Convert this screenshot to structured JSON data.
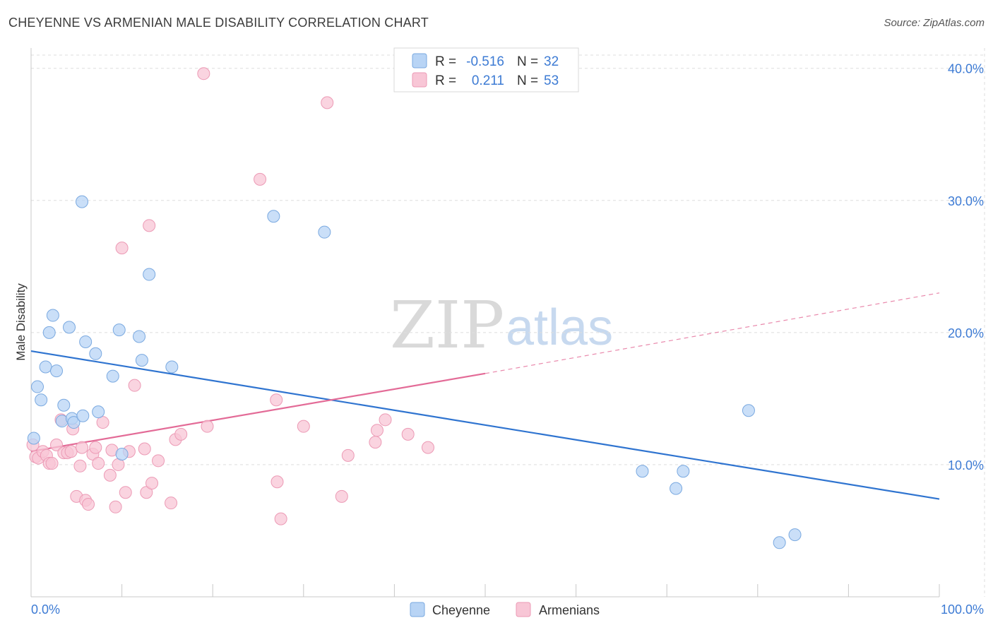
{
  "title": "CHEYENNE VS ARMENIAN MALE DISABILITY CORRELATION CHART",
  "source": "Source: ZipAtlas.com",
  "watermark": {
    "part1": "ZIP",
    "part2": "atlas"
  },
  "colors": {
    "cheyenne_fill": "#b8d4f5",
    "cheyenne_stroke": "#7aa9e0",
    "cheyenne_line": "#2f74d0",
    "armenian_fill": "#f8c6d6",
    "armenian_stroke": "#ec9ab5",
    "armenian_line": "#e36b97",
    "axis_label": "#3d7bd4"
  },
  "legend": {
    "rows": [
      {
        "r_label": "R =",
        "r_value": "-0.516",
        "n_label": "N =",
        "n_value": "32"
      },
      {
        "r_label": "R =",
        "r_value": "0.211",
        "n_label": "N =",
        "n_value": "53"
      }
    ]
  },
  "bottom_legend": {
    "items": [
      "Cheyenne",
      "Armenians"
    ]
  },
  "chart_data": {
    "type": "scatter",
    "title": "CHEYENNE VS ARMENIAN MALE DISABILITY CORRELATION CHART",
    "xlabel": "",
    "ylabel": "Male Disability",
    "xlim": [
      0,
      100
    ],
    "ylim": [
      0,
      41
    ],
    "x_tick_labels": [
      "0.0%",
      "100.0%"
    ],
    "y_ticks": [
      10,
      20,
      30,
      40
    ],
    "y_tick_labels": [
      "10.0%",
      "20.0%",
      "30.0%",
      "40.0%"
    ],
    "grid": true,
    "series": [
      {
        "name": "Cheyenne",
        "r": -0.516,
        "n": 32,
        "trend": {
          "x0": 0,
          "y0": 18.6,
          "x1": 100,
          "y1": 7.4
        },
        "points": [
          [
            0.3,
            12.0
          ],
          [
            0.7,
            15.9
          ],
          [
            1.1,
            14.9
          ],
          [
            1.6,
            17.4
          ],
          [
            2.0,
            20.0
          ],
          [
            2.4,
            21.3
          ],
          [
            2.8,
            17.1
          ],
          [
            3.4,
            13.3
          ],
          [
            3.6,
            14.5
          ],
          [
            4.2,
            20.4
          ],
          [
            4.5,
            13.5
          ],
          [
            4.7,
            13.2
          ],
          [
            5.7,
            13.7
          ],
          [
            5.6,
            29.9
          ],
          [
            6.0,
            19.3
          ],
          [
            7.1,
            18.4
          ],
          [
            7.4,
            14.0
          ],
          [
            9.0,
            16.7
          ],
          [
            9.7,
            20.2
          ],
          [
            10.0,
            10.8
          ],
          [
            11.9,
            19.7
          ],
          [
            12.2,
            17.9
          ],
          [
            13.0,
            24.4
          ],
          [
            15.5,
            17.4
          ],
          [
            26.7,
            28.8
          ],
          [
            32.3,
            27.6
          ],
          [
            67.3,
            9.5
          ],
          [
            71.0,
            8.2
          ],
          [
            71.8,
            9.5
          ],
          [
            79.0,
            14.1
          ],
          [
            82.4,
            4.1
          ],
          [
            84.1,
            4.7
          ]
        ]
      },
      {
        "name": "Armenians",
        "r": 0.211,
        "n": 53,
        "trend_solid": {
          "x0": 0,
          "y0": 11.0,
          "x1": 50,
          "y1": 16.9
        },
        "trend_dashed": {
          "x0": 50,
          "y0": 16.9,
          "x1": 100,
          "y1": 23.0
        },
        "points": [
          [
            0.2,
            11.5
          ],
          [
            0.5,
            10.6
          ],
          [
            0.8,
            10.5
          ],
          [
            1.3,
            11.0
          ],
          [
            1.7,
            10.7
          ],
          [
            2.0,
            10.1
          ],
          [
            2.3,
            10.1
          ],
          [
            2.8,
            11.5
          ],
          [
            3.3,
            13.4
          ],
          [
            3.6,
            10.9
          ],
          [
            4.0,
            10.9
          ],
          [
            4.4,
            11.0
          ],
          [
            4.6,
            12.7
          ],
          [
            5.0,
            7.6
          ],
          [
            5.4,
            9.9
          ],
          [
            5.6,
            11.3
          ],
          [
            6.0,
            7.3
          ],
          [
            6.3,
            7.0
          ],
          [
            6.8,
            10.8
          ],
          [
            7.1,
            11.3
          ],
          [
            7.4,
            10.1
          ],
          [
            7.9,
            13.2
          ],
          [
            8.7,
            9.2
          ],
          [
            8.9,
            11.1
          ],
          [
            9.3,
            6.8
          ],
          [
            9.6,
            10.0
          ],
          [
            10.0,
            26.4
          ],
          [
            10.4,
            7.9
          ],
          [
            10.8,
            11.0
          ],
          [
            11.4,
            16.0
          ],
          [
            12.5,
            11.2
          ],
          [
            12.7,
            7.9
          ],
          [
            13.3,
            8.6
          ],
          [
            14.0,
            10.3
          ],
          [
            15.4,
            7.1
          ],
          [
            15.9,
            11.9
          ],
          [
            16.5,
            12.3
          ],
          [
            13.0,
            28.1
          ],
          [
            19.0,
            39.6
          ],
          [
            19.4,
            12.9
          ],
          [
            25.2,
            31.6
          ],
          [
            27.0,
            14.9
          ],
          [
            27.1,
            8.7
          ],
          [
            27.5,
            5.9
          ],
          [
            30.0,
            12.9
          ],
          [
            32.6,
            37.4
          ],
          [
            34.2,
            7.6
          ],
          [
            34.9,
            10.7
          ],
          [
            37.9,
            11.7
          ],
          [
            38.1,
            12.6
          ],
          [
            39.0,
            13.4
          ],
          [
            41.5,
            12.3
          ],
          [
            43.7,
            11.3
          ]
        ]
      }
    ]
  }
}
